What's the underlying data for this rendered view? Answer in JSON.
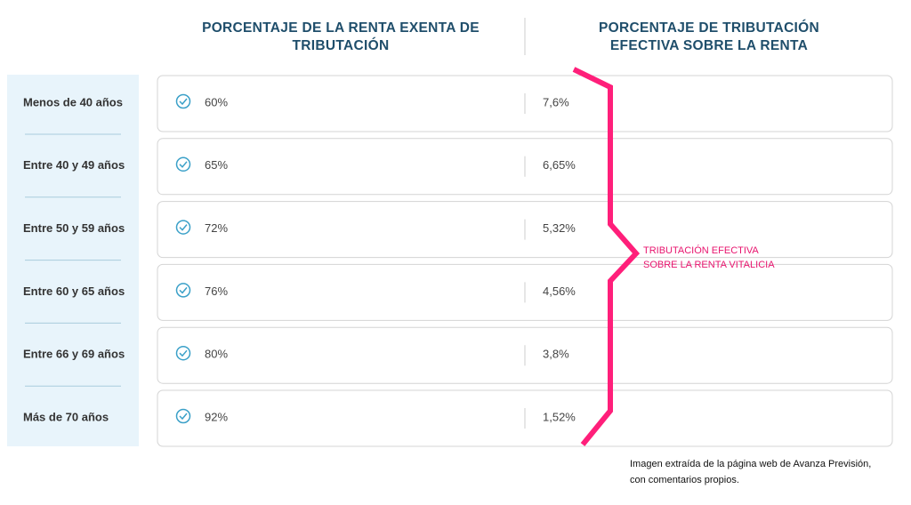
{
  "header": {
    "col1": [
      "PORCENTAJE DE LA RENTA EXENTA DE",
      "TRIBUTACIÓN"
    ],
    "col2": [
      "PORCENTAJE DE TRIBUTACIÓN",
      "EFECTIVA SOBRE LA RENTA"
    ]
  },
  "table": {
    "rows": [
      [
        "Menos de 40 años",
        "60%",
        "7,6%"
      ],
      [
        "Entre 40 y 49 años",
        "65%",
        "6,65%"
      ],
      [
        "Entre 50 y 59 años",
        "72%",
        "5,32%"
      ],
      [
        "Entre 60 y 65 años",
        "76%",
        "4,56%"
      ],
      [
        "Entre 66 y 69 años",
        "80%",
        "3,8%"
      ],
      [
        "Más de 70 años",
        "92%",
        "1,52%"
      ]
    ]
  },
  "annotation": [
    "TRIBUTACIÓN EFECTIVA",
    "SOBRE LA RENTA VITALICIA"
  ],
  "caption": [
    "Imagen extraída de la página web de Avanza Previsión,",
    "con comentarios propios."
  ]
}
